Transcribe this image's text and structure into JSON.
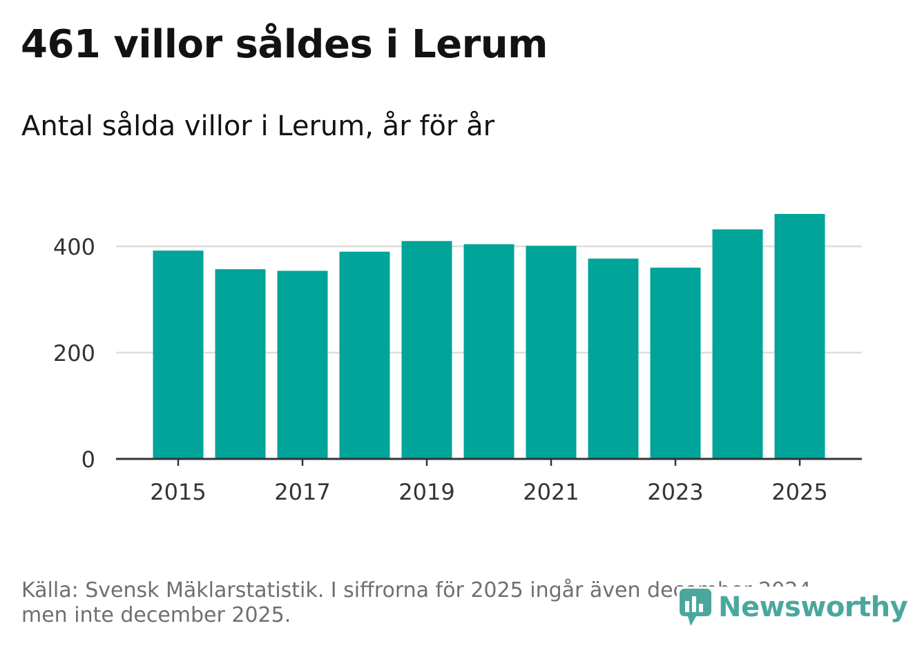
{
  "title": "461 villor såldes i Lerum",
  "subtitle": "Antal sålda villor i Lerum, år för år",
  "source": "Källa: Svensk Mäklarstatistik. I siffrorna för 2025 ingår även december 2024, men inte december 2025.",
  "logo": {
    "text": "Newsworthy",
    "icon": "bar-chart-logo-icon"
  },
  "colors": {
    "bar": "#00a499",
    "grid": "#dddddd",
    "axis": "#333333",
    "label": "#333333",
    "logo": "#4aa79e"
  },
  "chart_data": {
    "type": "bar",
    "title": "461 villor såldes i Lerum",
    "subtitle": "Antal sålda villor i Lerum, år för år",
    "xlabel": "",
    "ylabel": "",
    "categories": [
      "2015",
      "2016",
      "2017",
      "2018",
      "2019",
      "2020",
      "2021",
      "2022",
      "2023",
      "2024",
      "2025"
    ],
    "values": [
      392,
      357,
      354,
      390,
      410,
      404,
      401,
      377,
      360,
      432,
      461
    ],
    "x_ticks": [
      "2015",
      "2017",
      "2019",
      "2021",
      "2023",
      "2025"
    ],
    "y_ticks": [
      0,
      200,
      400
    ],
    "ylim": [
      0,
      480
    ],
    "grid": true
  }
}
